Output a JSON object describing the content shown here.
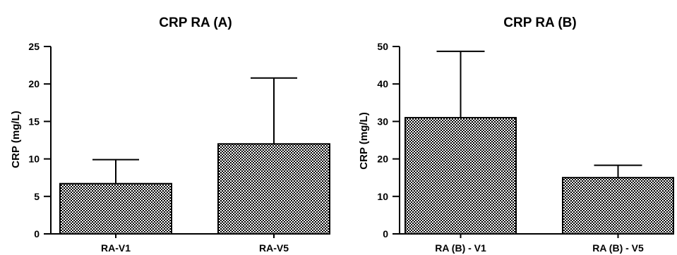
{
  "chart_data": [
    {
      "type": "bar",
      "title": "CRP RA (A)",
      "ylabel": "CRP (mg/L)",
      "categories": [
        "RA-V1",
        "RA-V5"
      ],
      "values": [
        6.7,
        12.0
      ],
      "error_upper": [
        9.9,
        20.8
      ],
      "ylim": [
        0,
        25
      ],
      "yticks": [
        0,
        5,
        10,
        15,
        20,
        25
      ],
      "grid": false,
      "bar_fill": "checkered hatch"
    },
    {
      "type": "bar",
      "title": "CRP RA (B)",
      "ylabel": "CRP (mg/L)",
      "categories": [
        "RA (B) - V1",
        "RA (B) - V5"
      ],
      "values": [
        31.0,
        15.0
      ],
      "error_upper": [
        48.7,
        18.3
      ],
      "ylim": [
        0,
        50
      ],
      "yticks": [
        0,
        10,
        20,
        30,
        40,
        50
      ],
      "grid": false,
      "bar_fill": "checkered hatch"
    }
  ]
}
